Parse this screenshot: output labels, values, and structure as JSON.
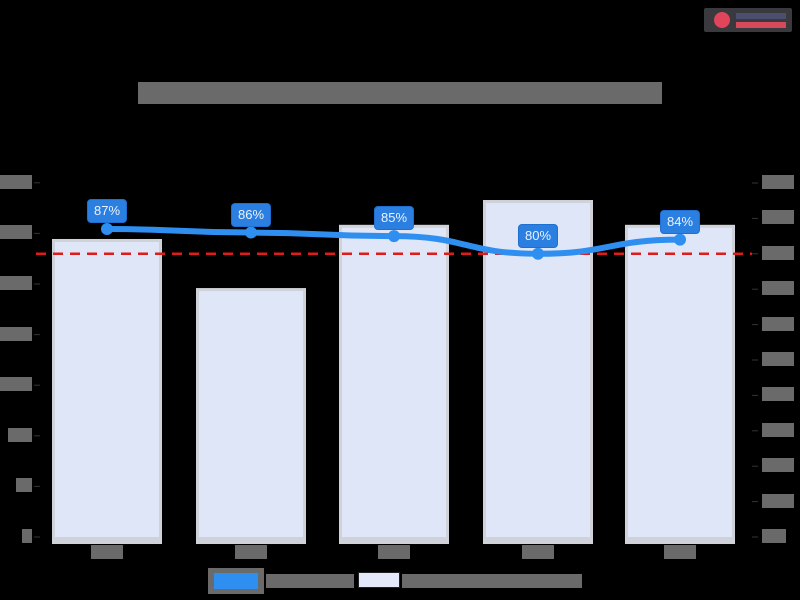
{
  "logo": {
    "name": "logo",
    "colors": {
      "mark": "#e0455b",
      "top": "#4a4f70",
      "bottom": "#d44a5c"
    }
  },
  "chart_data": {
    "type": "bar+line",
    "title": "",
    "title_redacted": true,
    "categories": [
      "",
      "",
      "",
      "",
      ""
    ],
    "categories_redacted": true,
    "series": [
      {
        "name": "",
        "name_redacted": true,
        "type": "bar",
        "axis": "left",
        "color": "#dfe6f7",
        "values_in_left_axis_tick_units": [
          5.87,
          4.9,
          6.15,
          6.64,
          6.15
        ]
      },
      {
        "name": "",
        "name_redacted": true,
        "type": "line",
        "axis": "right",
        "color": "#2f8ff0",
        "smooth": true,
        "values": [
          87,
          86,
          85,
          80,
          84
        ],
        "data_labels": [
          "87%",
          "86%",
          "85%",
          "80%",
          "84%"
        ]
      }
    ],
    "reference_line": {
      "value": 80,
      "axis": "right",
      "style": "dashed",
      "color": "#e01b1b"
    },
    "left_axis": {
      "tick_count": 8,
      "labels_redacted": true,
      "range_in_ticks": [
        0,
        7
      ]
    },
    "right_axis": {
      "tick_count": 11,
      "labels_redacted": true,
      "inferred_range": [
        0,
        100
      ],
      "unit": "%"
    },
    "grid": false,
    "legend_position": "bottom",
    "background": "#000000"
  }
}
